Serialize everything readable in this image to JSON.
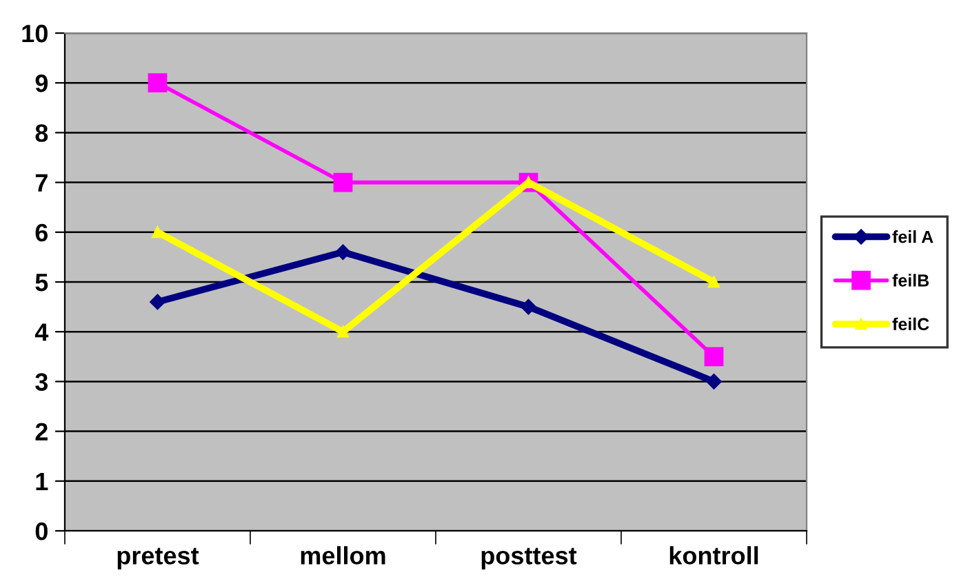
{
  "chart_data": {
    "type": "line",
    "categories": [
      "pretest",
      "mellom",
      "posttest",
      "kontroll"
    ],
    "series": [
      {
        "name": "feil A",
        "color": "#000080",
        "values": [
          4.6,
          5.6,
          4.5,
          3.0
        ],
        "marker": "diamond"
      },
      {
        "name": "feilB",
        "color": "#ff00ff",
        "values": [
          9,
          7,
          7,
          3.5
        ],
        "marker": "square"
      },
      {
        "name": "feilC",
        "color": "#ffff00",
        "values": [
          6,
          4,
          7,
          5
        ],
        "marker": "triangle"
      }
    ],
    "ylim": [
      0,
      10
    ],
    "yticks": [
      0,
      1,
      2,
      3,
      4,
      5,
      6,
      7,
      8,
      9,
      10
    ],
    "grid": "y",
    "legend": "right",
    "line_style": "solid"
  }
}
